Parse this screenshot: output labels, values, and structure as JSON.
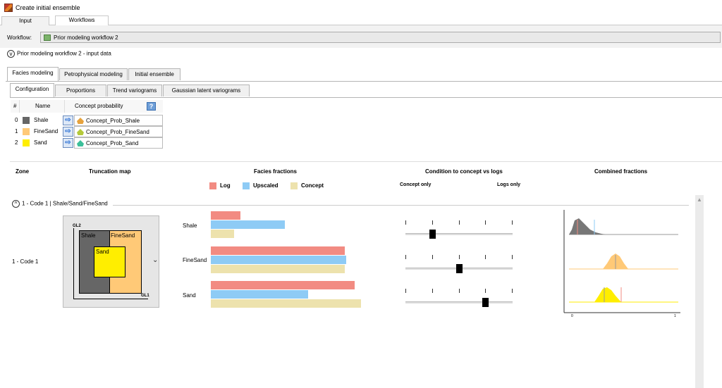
{
  "window": {
    "title": "Create initial ensemble"
  },
  "top_tabs": [
    {
      "label": "Input"
    },
    {
      "label": "Workflows"
    }
  ],
  "workflow": {
    "label": "Workflow:",
    "value": "Prior modeling workflow 2"
  },
  "section": {
    "title": "Prior modeling workflow 2 - input data",
    "toggle": "v"
  },
  "main_tabs": [
    {
      "label": "Facies modeling"
    },
    {
      "label": "Petrophysical modeling"
    },
    {
      "label": "Initial ensemble"
    }
  ],
  "sub_tabs": [
    {
      "label": "Configuration"
    },
    {
      "label": "Proportions"
    },
    {
      "label": "Trend variograms"
    },
    {
      "label": "Gaussian latent variograms"
    }
  ],
  "facies_table": {
    "headers": {
      "index": "#",
      "name": "Name",
      "concept": "Concept probability",
      "help": "?"
    },
    "arrow": "⇨",
    "rows": [
      {
        "index": "0",
        "name": "Shale",
        "color": "#666666",
        "concept": "Concept_Prob_Shale",
        "icon_color": "#e6a23c"
      },
      {
        "index": "1",
        "name": "FineSand",
        "color": "#ffc977",
        "concept": "Concept_Prob_FineSand",
        "icon_color": "#b5c93a"
      },
      {
        "index": "2",
        "name": "Sand",
        "color": "#ffee00",
        "concept": "Concept_Prob_Sand",
        "icon_color": "#3cbf9a"
      }
    ]
  },
  "columns": {
    "zone": "Zone",
    "truncation": "Truncation map",
    "fractions": "Facies fractions",
    "condition": "Condition to concept vs logs",
    "combined": "Combined fractions"
  },
  "legend": [
    {
      "label": "Log",
      "color": "#f28b82"
    },
    {
      "label": "Upscaled",
      "color": "#8ecbf5"
    },
    {
      "label": "Concept",
      "color": "#ede2ad"
    }
  ],
  "condition_labels": {
    "left": "Concept only",
    "right": "Logs only"
  },
  "code_section": {
    "title": "1 - Code 1 | Shale/Sand/FineSand",
    "toggle": "^"
  },
  "zone": {
    "label": "1 - Code 1"
  },
  "truncation_map": {
    "axis_y": "GL2",
    "axis_x": "GL1",
    "regions": [
      "Shale",
      "FineSand",
      "Sand"
    ],
    "dropdown": "⌄"
  },
  "fractions": {
    "max": 1.0,
    "facies": [
      {
        "name": "Shale",
        "log": 0.18,
        "upscaled": 0.45,
        "concept": 0.14
      },
      {
        "name": "FineSand",
        "log": 0.81,
        "upscaled": 0.82,
        "concept": 0.81
      },
      {
        "name": "Sand",
        "log": 0.87,
        "upscaled": 0.59,
        "concept": 0.91
      }
    ]
  },
  "condition_sliders": [
    0.25,
    0.5,
    0.75
  ],
  "combined_axis": {
    "min": "0",
    "max": "1"
  },
  "combined_colors": [
    "#777777",
    "#ffc977",
    "#ffee00"
  ],
  "scroll": {
    "up": "▲"
  }
}
